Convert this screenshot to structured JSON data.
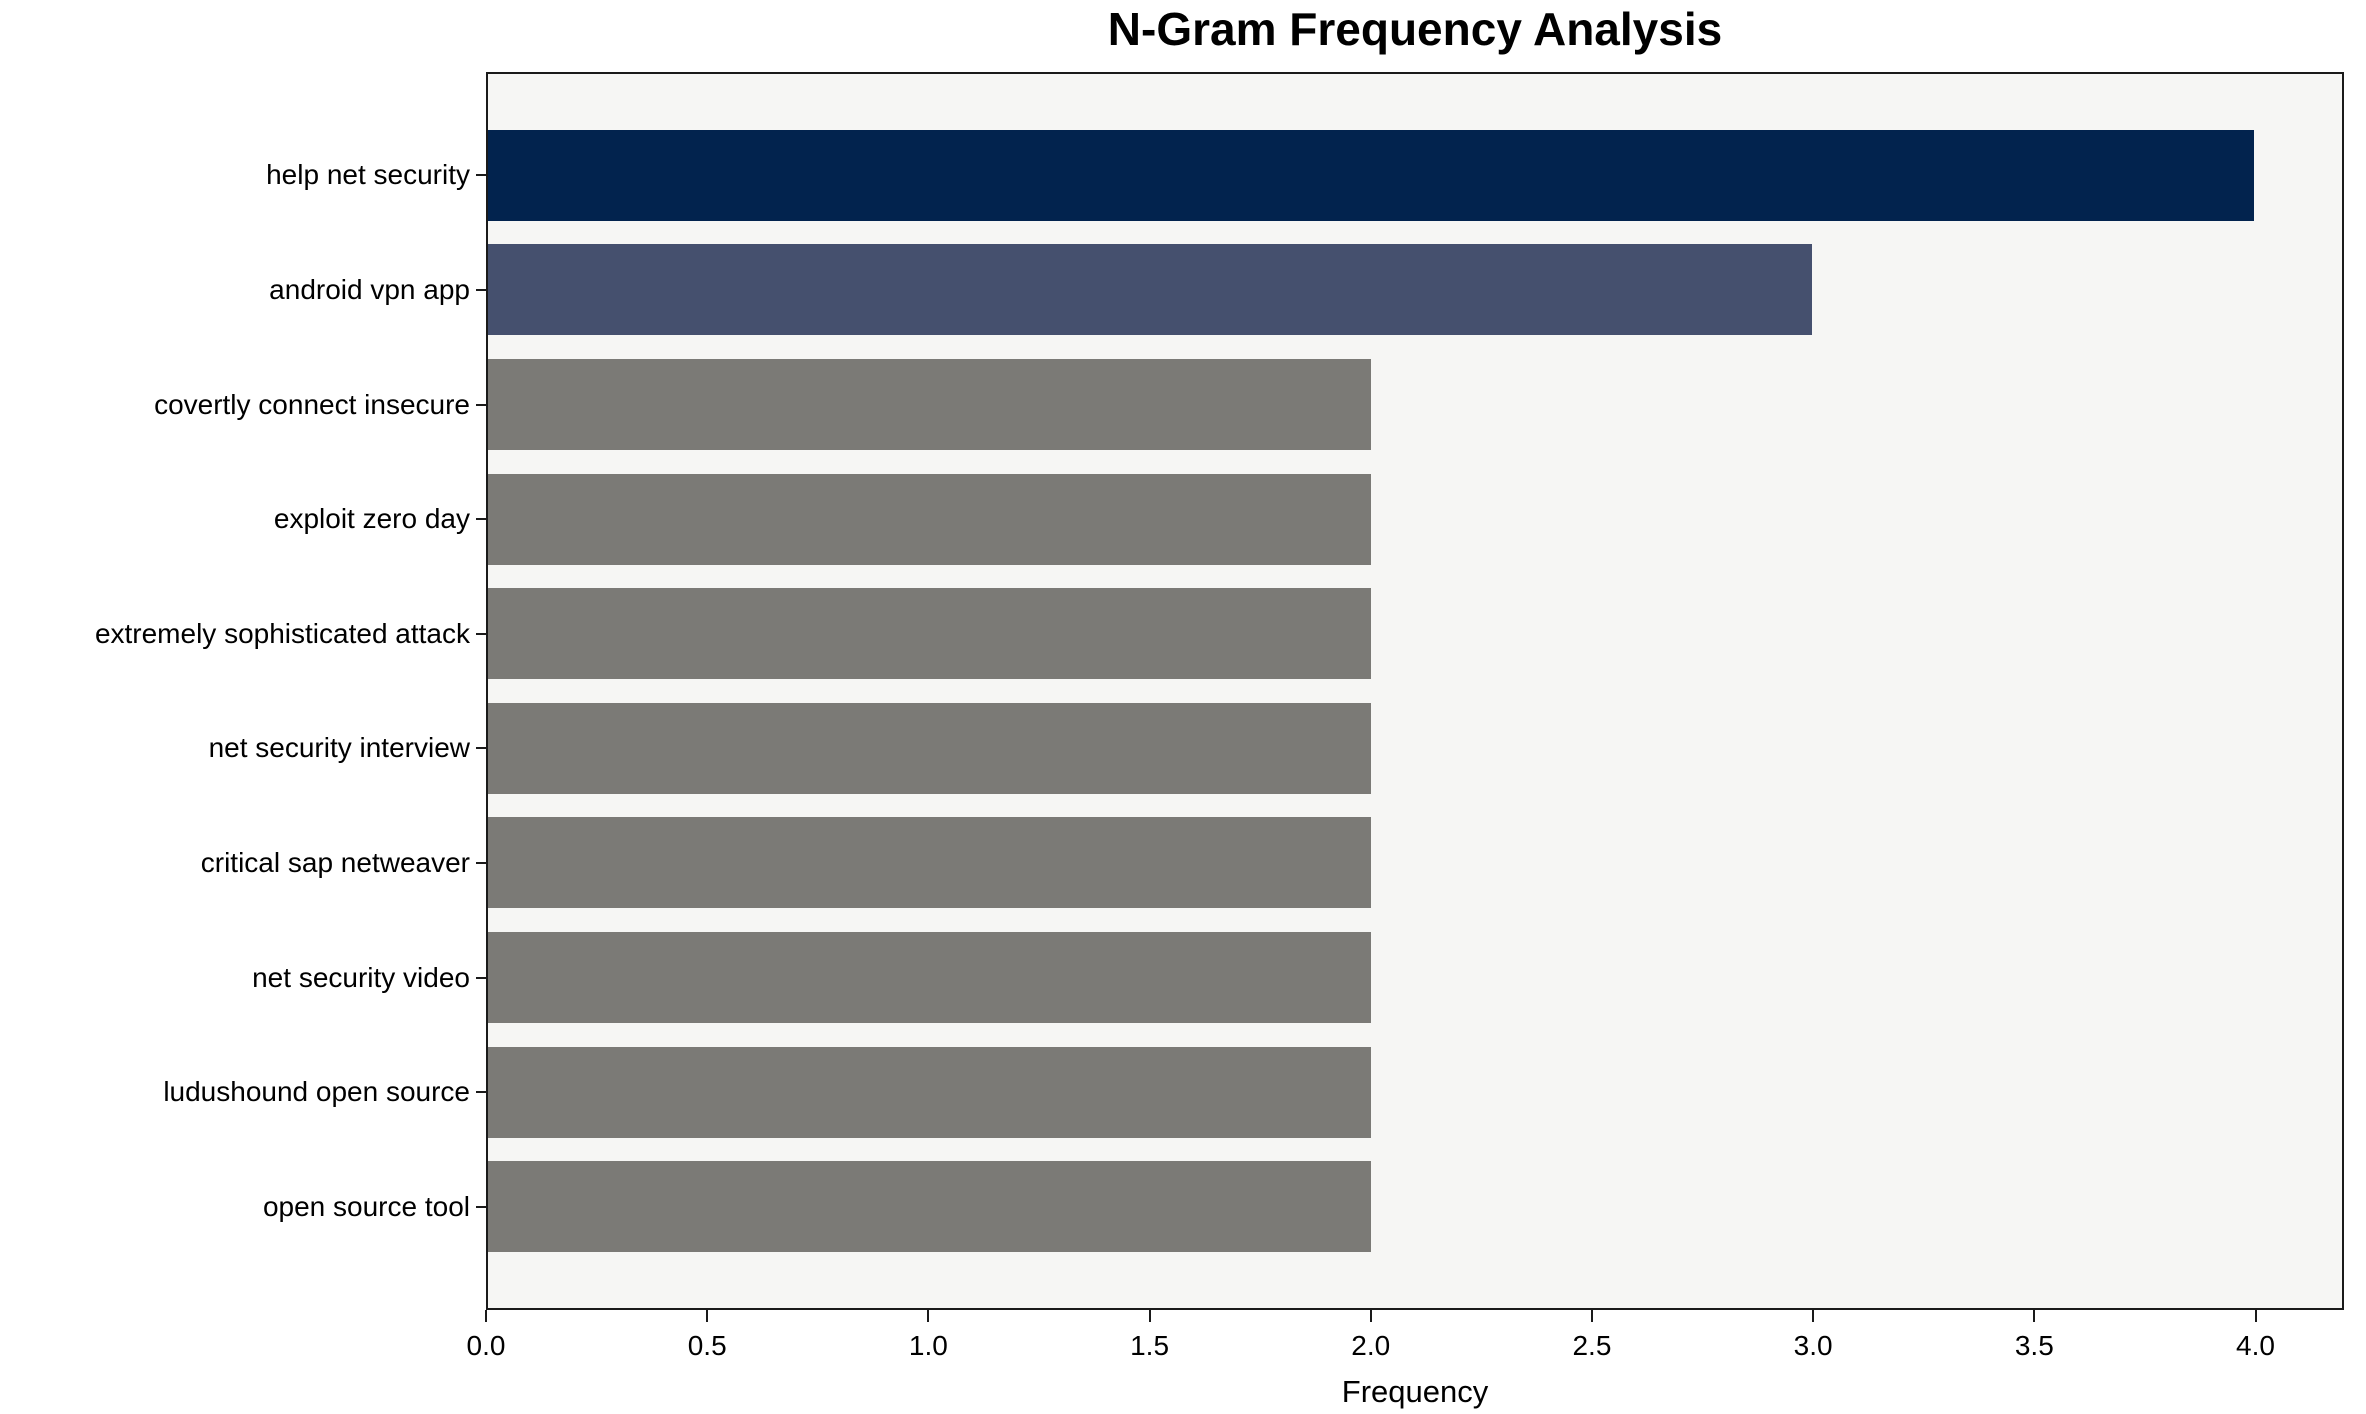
{
  "chart_data": {
    "type": "bar",
    "orientation": "horizontal",
    "title": "N-Gram Frequency Analysis",
    "xlabel": "Frequency",
    "ylabel": "",
    "categories": [
      "help net security",
      "android vpn app",
      "covertly connect insecure",
      "exploit zero day",
      "extremely sophisticated attack",
      "net security interview",
      "critical sap netweaver",
      "net security video",
      "ludushound open source",
      "open source tool"
    ],
    "values": [
      4,
      3,
      2,
      2,
      2,
      2,
      2,
      2,
      2,
      2
    ],
    "bar_colors": [
      "#02234e",
      "#45506e",
      "#7b7a76",
      "#7b7a76",
      "#7b7a76",
      "#7b7a76",
      "#7b7a76",
      "#7b7a76",
      "#7b7a76",
      "#7b7a76"
    ],
    "xlim": [
      0,
      4.2
    ],
    "xticks": [
      0.0,
      0.5,
      1.0,
      1.5,
      2.0,
      2.5,
      3.0,
      3.5,
      4.0
    ],
    "xtick_labels": [
      "0.0",
      "0.5",
      "1.0",
      "1.5",
      "2.0",
      "2.5",
      "3.0",
      "3.5",
      "4.0"
    ],
    "grid": false,
    "legend": null,
    "plot_background": "#f6f6f4",
    "figure_background": "#ffffff",
    "spine_color": "#1a1a1a"
  }
}
